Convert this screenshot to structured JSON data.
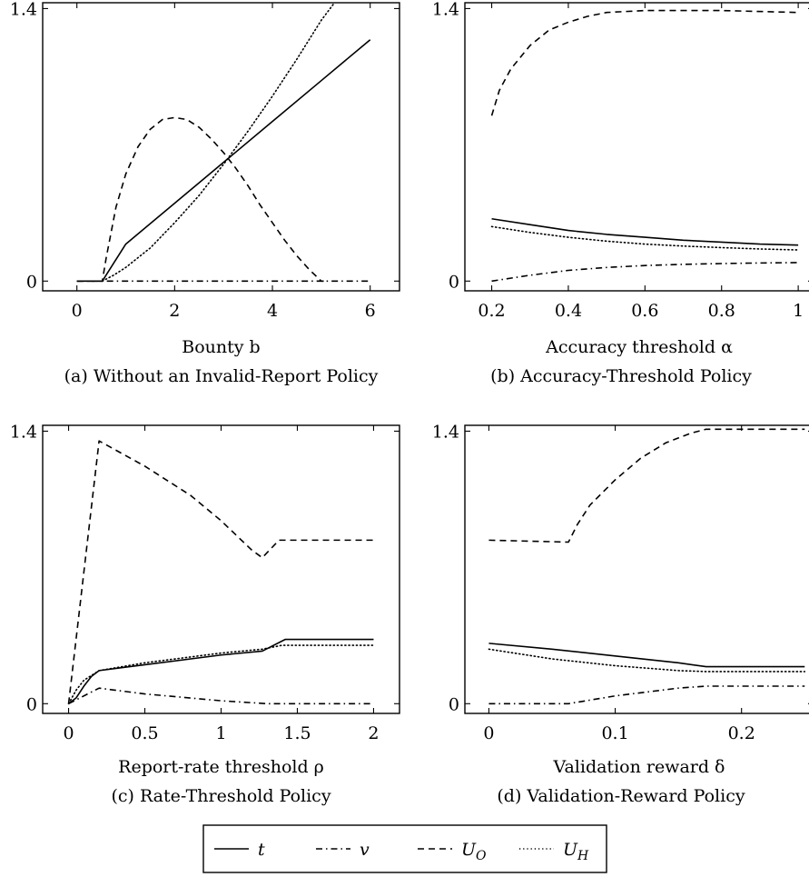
{
  "legend": {
    "position": "bottom-center",
    "entries": [
      {
        "key": "t",
        "label": "t",
        "style": "solid"
      },
      {
        "key": "v",
        "label": "v",
        "style": "dashdot"
      },
      {
        "key": "UO",
        "label": "U_O",
        "style": "dashed"
      },
      {
        "key": "UH",
        "label": "U_H",
        "style": "dotted"
      }
    ]
  },
  "chart_data": [
    {
      "type": "line",
      "caption": "(a) Without an Invalid-Report Policy",
      "xlabel": "Bounty b",
      "xlim": [
        -0.7,
        6.6
      ],
      "ylim": [
        -0.05,
        1.43
      ],
      "xticks": [
        0,
        2,
        4,
        6
      ],
      "xtick_labels": [
        "0",
        "2",
        "4",
        "6"
      ],
      "yticks": [
        0,
        1.4
      ],
      "ytick_labels": [
        "0",
        "1.4"
      ],
      "series": [
        {
          "key": "t",
          "x": [
            0,
            0.52,
            1,
            2,
            3,
            4,
            5,
            6
          ],
          "y": [
            0,
            0,
            0.19,
            0.4,
            0.61,
            0.82,
            1.03,
            1.24
          ]
        },
        {
          "key": "v",
          "x": [
            0,
            6
          ],
          "y": [
            0,
            0
          ]
        },
        {
          "key": "UO",
          "x": [
            0,
            0.52,
            0.6,
            0.8,
            1.0,
            1.25,
            1.5,
            1.75,
            2.0,
            2.25,
            2.5,
            2.75,
            3.0,
            3.25,
            3.5,
            3.75,
            4.0,
            4.25,
            4.5,
            4.75,
            5.0,
            5.05
          ],
          "y": [
            0,
            0,
            0.12,
            0.38,
            0.55,
            0.69,
            0.78,
            0.83,
            0.84,
            0.83,
            0.79,
            0.73,
            0.66,
            0.58,
            0.49,
            0.39,
            0.3,
            0.21,
            0.13,
            0.06,
            0.0,
            0.0
          ]
        },
        {
          "key": "UH",
          "x": [
            0.52,
            0.75,
            1.0,
            1.5,
            2.0,
            2.5,
            3.0,
            3.5,
            4.0,
            4.5,
            5.0,
            5.3
          ],
          "y": [
            0,
            0.03,
            0.07,
            0.17,
            0.3,
            0.44,
            0.6,
            0.77,
            0.95,
            1.14,
            1.34,
            1.44
          ]
        }
      ]
    },
    {
      "type": "line",
      "caption": "(b) Accuracy-Threshold Policy",
      "xlabel": "Accuracy threshold α",
      "xlim": [
        0.13,
        1.04
      ],
      "ylim": [
        -0.05,
        1.43
      ],
      "xticks": [
        0.2,
        0.4,
        0.6,
        0.8,
        1.0
      ],
      "xtick_labels": [
        "0.2",
        "0.4",
        "0.6",
        "0.8",
        "1"
      ],
      "yticks": [
        0,
        1.4
      ],
      "ytick_labels": [
        "0",
        "1.4"
      ],
      "series": [
        {
          "key": "t",
          "x": [
            0.2,
            0.3,
            0.4,
            0.5,
            0.6,
            0.7,
            0.8,
            0.9,
            1.0
          ],
          "y": [
            0.32,
            0.29,
            0.26,
            0.24,
            0.225,
            0.21,
            0.2,
            0.19,
            0.185
          ]
        },
        {
          "key": "v",
          "x": [
            0.2,
            0.3,
            0.4,
            0.5,
            0.6,
            0.7,
            0.8,
            0.9,
            1.0
          ],
          "y": [
            0,
            0.03,
            0.055,
            0.07,
            0.08,
            0.086,
            0.09,
            0.093,
            0.095
          ]
        },
        {
          "key": "UO",
          "x": [
            0.2,
            0.22,
            0.25,
            0.3,
            0.35,
            0.4,
            0.45,
            0.5,
            0.6,
            0.7,
            0.8,
            1.0
          ],
          "y": [
            0.85,
            0.98,
            1.09,
            1.21,
            1.29,
            1.33,
            1.36,
            1.38,
            1.39,
            1.39,
            1.39,
            1.38
          ]
        },
        {
          "key": "UH",
          "x": [
            0.2,
            0.3,
            0.4,
            0.5,
            0.6,
            0.7,
            0.8,
            0.9,
            1.0
          ],
          "y": [
            0.28,
            0.25,
            0.225,
            0.205,
            0.19,
            0.18,
            0.172,
            0.165,
            0.16
          ]
        }
      ]
    },
    {
      "type": "line",
      "caption": "(c) Rate-Threshold Policy",
      "xlabel": "Report-rate threshold ρ",
      "xlim": [
        -0.17,
        2.17
      ],
      "ylim": [
        -0.05,
        1.43
      ],
      "xticks": [
        0,
        0.5,
        1,
        1.5,
        2
      ],
      "xtick_labels": [
        "0",
        "0.5",
        "1",
        "1.5",
        "2"
      ],
      "yticks": [
        0,
        1.4
      ],
      "ytick_labels": [
        "0",
        "1.4"
      ],
      "series": [
        {
          "key": "t",
          "x": [
            0,
            0.05,
            0.1,
            0.15,
            0.2,
            0.5,
            1.0,
            1.27,
            1.42,
            1.5,
            2.0
          ],
          "y": [
            0,
            0.03,
            0.09,
            0.14,
            0.17,
            0.2,
            0.25,
            0.27,
            0.33,
            0.33,
            0.33
          ]
        },
        {
          "key": "v",
          "x": [
            0,
            0.2,
            0.5,
            1.0,
            1.3,
            1.5,
            2.0
          ],
          "y": [
            0,
            0.08,
            0.05,
            0.015,
            0.0,
            0.0,
            0.0
          ]
        },
        {
          "key": "UO",
          "x": [
            0,
            0.2,
            0.5,
            0.8,
            1.0,
            1.2,
            1.27,
            1.38,
            1.5,
            2.0
          ],
          "y": [
            0,
            1.35,
            1.22,
            1.07,
            0.94,
            0.79,
            0.75,
            0.84,
            0.84,
            0.84
          ]
        },
        {
          "key": "UH",
          "x": [
            0,
            0.05,
            0.1,
            0.2,
            0.5,
            1.0,
            1.27,
            1.4,
            2.0
          ],
          "y": [
            0,
            0.07,
            0.12,
            0.17,
            0.21,
            0.26,
            0.28,
            0.3,
            0.3
          ]
        }
      ]
    },
    {
      "type": "line",
      "caption": "(d) Validation-Reward Policy",
      "xlabel": "Validation reward δ",
      "xlim": [
        -0.019,
        0.257
      ],
      "ylim": [
        -0.05,
        1.43
      ],
      "xticks": [
        0,
        0.1,
        0.2
      ],
      "xtick_labels": [
        "0",
        "0.1",
        "0.2"
      ],
      "yticks": [
        0,
        1.4
      ],
      "ytick_labels": [
        "0",
        "1.4"
      ],
      "series": [
        {
          "key": "t",
          "x": [
            0,
            0.05,
            0.1,
            0.15,
            0.172,
            0.2,
            0.25
          ],
          "y": [
            0.31,
            0.28,
            0.245,
            0.21,
            0.19,
            0.19,
            0.19
          ]
        },
        {
          "key": "v",
          "x": [
            0,
            0.063,
            0.1,
            0.15,
            0.172,
            0.2,
            0.25
          ],
          "y": [
            0,
            0.0,
            0.04,
            0.08,
            0.09,
            0.09,
            0.09
          ]
        },
        {
          "key": "UO",
          "x": [
            0,
            0.063,
            0.07,
            0.08,
            0.1,
            0.12,
            0.14,
            0.16,
            0.172,
            0.2,
            0.25
          ],
          "y": [
            0.84,
            0.83,
            0.92,
            1.02,
            1.15,
            1.26,
            1.34,
            1.39,
            1.41,
            1.41,
            1.41
          ]
        },
        {
          "key": "UH",
          "x": [
            0,
            0.05,
            0.1,
            0.15,
            0.172,
            0.2,
            0.25
          ],
          "y": [
            0.28,
            0.23,
            0.195,
            0.17,
            0.165,
            0.165,
            0.165
          ]
        }
      ]
    }
  ]
}
